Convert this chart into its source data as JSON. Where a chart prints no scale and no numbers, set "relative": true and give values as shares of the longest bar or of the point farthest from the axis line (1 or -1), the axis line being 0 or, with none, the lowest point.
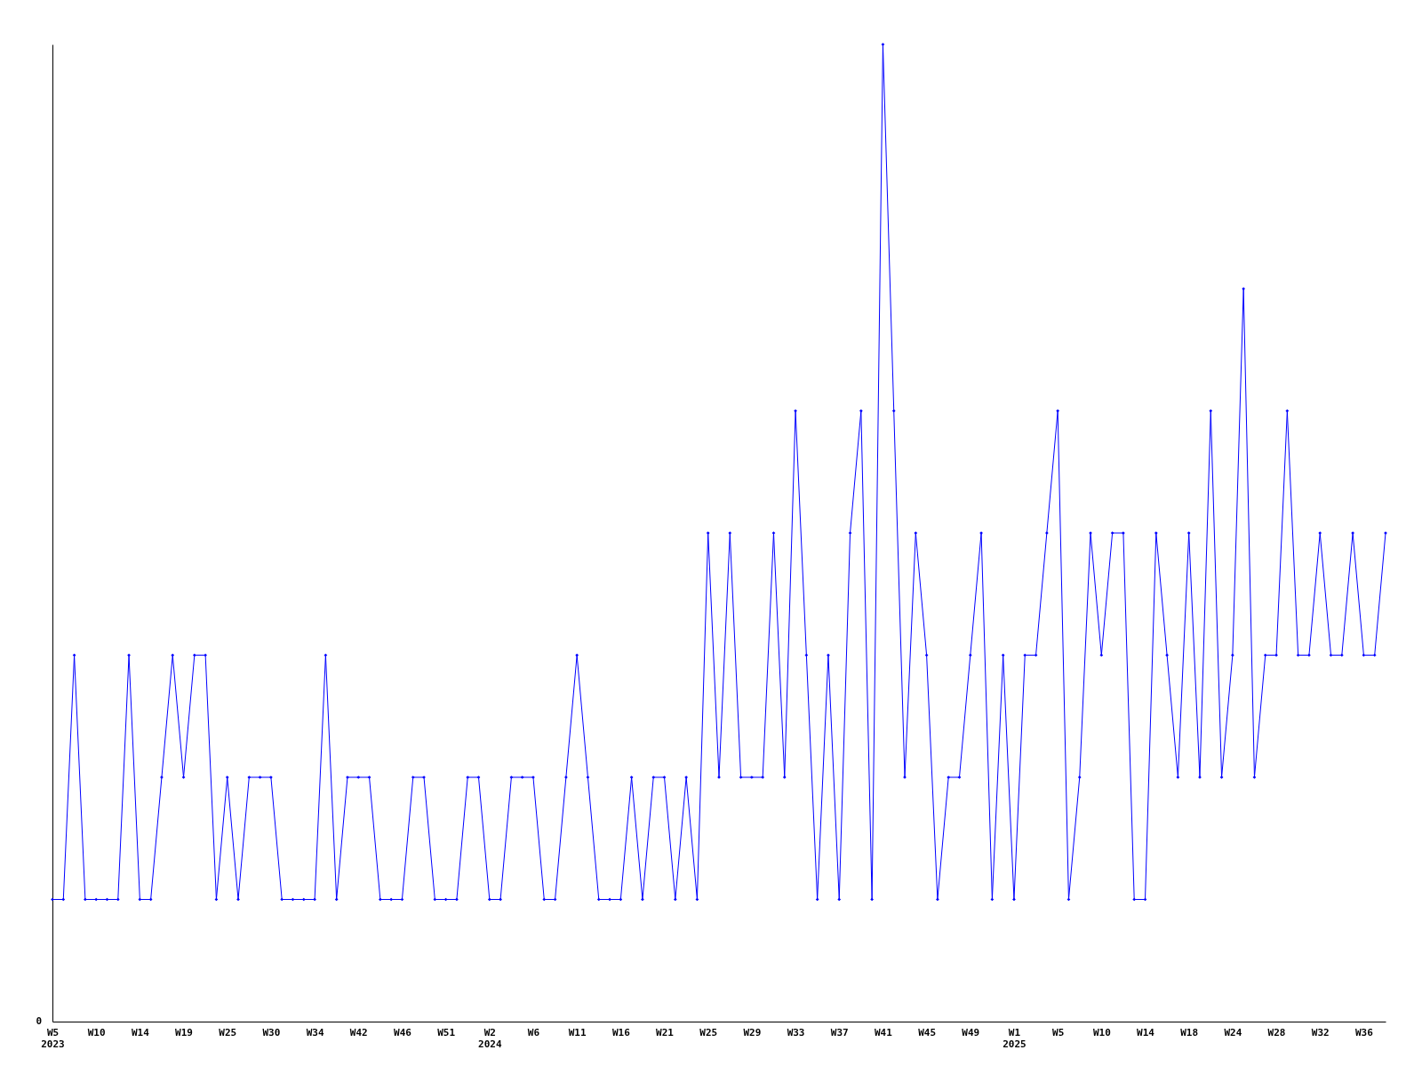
{
  "chart_data": {
    "type": "line",
    "relative": true,
    "marker": "diamond",
    "line_style": "solid",
    "grid": false,
    "annotations": [
      "0"
    ],
    "categories": [
      "W5\n2023",
      null,
      null,
      null,
      "W10",
      null,
      null,
      null,
      "W14",
      null,
      null,
      null,
      "W19",
      null,
      null,
      null,
      "W25",
      null,
      null,
      null,
      "W30",
      null,
      null,
      null,
      "W34",
      null,
      null,
      null,
      "W42",
      null,
      null,
      null,
      "W46",
      null,
      null,
      null,
      "W51",
      null,
      null,
      null,
      "W2\n2024",
      null,
      null,
      null,
      "W6",
      null,
      null,
      null,
      "W11",
      null,
      null,
      null,
      "W16",
      null,
      null,
      null,
      "W21",
      null,
      null,
      null,
      "W25",
      null,
      null,
      null,
      "W29",
      null,
      null,
      null,
      "W33",
      null,
      null,
      null,
      "W37",
      null,
      null,
      null,
      "W41",
      null,
      null,
      null,
      "W45",
      null,
      null,
      null,
      "W49",
      null,
      null,
      null,
      "W1\n2025",
      null,
      null,
      null,
      "W5",
      null,
      null,
      null,
      "W10",
      null,
      null,
      null,
      "W14",
      null,
      null,
      null,
      "W18",
      null,
      null,
      null,
      "W24",
      null,
      null,
      null,
      "W28",
      null,
      null,
      null,
      "W32",
      null,
      null,
      null,
      "W36",
      null,
      null
    ],
    "series": [
      {
        "color": "#0000ff",
        "values": [
          0.125,
          0.125,
          0.375,
          0.125,
          0.125,
          0.125,
          0.125,
          0.375,
          0.125,
          0.125,
          0.25,
          0.375,
          0.25,
          0.375,
          0.375,
          0.125,
          0.25,
          0.125,
          0.25,
          0.25,
          0.25,
          0.125,
          0.125,
          0.125,
          0.125,
          0.375,
          0.125,
          0.25,
          0.25,
          0.25,
          0.125,
          0.125,
          0.125,
          0.25,
          0.25,
          0.125,
          0.125,
          0.125,
          0.25,
          0.25,
          0.125,
          0.125,
          0.25,
          0.25,
          0.25,
          0.125,
          0.125,
          0.25,
          0.375,
          0.25,
          0.125,
          0.125,
          0.125,
          0.25,
          0.125,
          0.25,
          0.25,
          0.125,
          0.25,
          0.125,
          0.5,
          0.25,
          0.5,
          0.25,
          0.25,
          0.25,
          0.5,
          0.25,
          0.625,
          0.375,
          0.125,
          0.375,
          0.125,
          0.5,
          0.625,
          0.125,
          1,
          0.625,
          0.25,
          0.5,
          0.375,
          0.125,
          0.25,
          0.25,
          0.375,
          0.5,
          0.125,
          0.375,
          0.125,
          0.375,
          0.375,
          0.5,
          0.625,
          0.125,
          0.25,
          0.5,
          0.375,
          0.5,
          0.5,
          0.125,
          0.125,
          0.5,
          0.375,
          0.25,
          0.5,
          0.25,
          0.625,
          0.25,
          0.375,
          0.75,
          0.25,
          0.375,
          0.375,
          0.625,
          0.375,
          0.375,
          0.5,
          0.375,
          0.375,
          0.5,
          0.375,
          0.375,
          0.5
        ]
      }
    ]
  }
}
